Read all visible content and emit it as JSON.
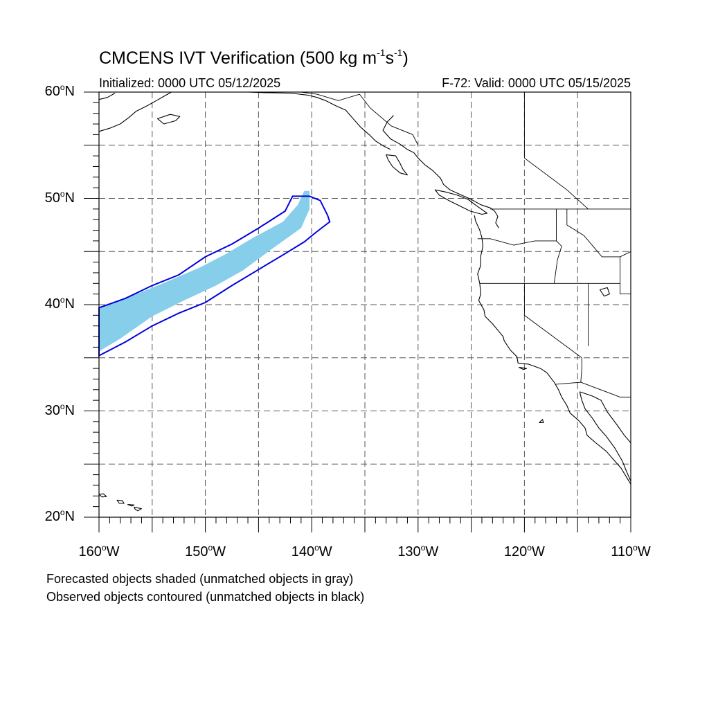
{
  "title": {
    "main": "CMCENS IVT Verification (500 kg m",
    "exp1": "-1",
    "mid": "s",
    "exp2": "-1",
    "end": ")"
  },
  "subtitle": {
    "left": "Initialized: 0000 UTC 05/12/2025",
    "right": "F-72: Valid: 0000 UTC 05/15/2025"
  },
  "map": {
    "projection": "cylindrical-equidistant",
    "lon_range": [
      -160,
      -110
    ],
    "lat_range": [
      20,
      60
    ],
    "grid": "dashed every 5 degrees",
    "lat_labels": [
      {
        "value": 60,
        "num": "60",
        "hem": "N"
      },
      {
        "value": 50,
        "num": "50",
        "hem": "N"
      },
      {
        "value": 40,
        "num": "40",
        "hem": "N"
      },
      {
        "value": 30,
        "num": "30",
        "hem": "N"
      },
      {
        "value": 20,
        "num": "20",
        "hem": "N"
      }
    ],
    "lon_labels": [
      {
        "value": -160,
        "num": "160",
        "hem": "W"
      },
      {
        "value": -150,
        "num": "150",
        "hem": "W"
      },
      {
        "value": -140,
        "num": "140",
        "hem": "W"
      },
      {
        "value": -130,
        "num": "130",
        "hem": "W"
      },
      {
        "value": -120,
        "num": "120",
        "hem": "W"
      },
      {
        "value": -110,
        "num": "110",
        "hem": "W"
      }
    ],
    "forecast_object": {
      "fill_color": "#87ceeb",
      "outline_lonlat": [
        [
          -160,
          39.8
        ],
        [
          -157,
          40.8
        ],
        [
          -154,
          42.0
        ],
        [
          -150.5,
          43.5
        ],
        [
          -148,
          44.8
        ],
        [
          -145.5,
          46.3
        ],
        [
          -142.7,
          47.8
        ],
        [
          -141.3,
          49.4
        ],
        [
          -140.7,
          50.7
        ],
        [
          -140.2,
          50.7
        ],
        [
          -140.2,
          49.0
        ],
        [
          -141.0,
          47.2
        ],
        [
          -143.8,
          45.2
        ],
        [
          -146.5,
          43.2
        ],
        [
          -149,
          41.8
        ],
        [
          -152,
          40.4
        ],
        [
          -155,
          38.9
        ],
        [
          -158,
          36.8
        ],
        [
          -160,
          35.6
        ]
      ]
    },
    "observed_object": {
      "contour_color": "#0000dd",
      "outline_lonlat": [
        [
          -160,
          39.7
        ],
        [
          -157.5,
          40.6
        ],
        [
          -155,
          41.8
        ],
        [
          -152.5,
          42.8
        ],
        [
          -150,
          44.5
        ],
        [
          -147.5,
          45.7
        ],
        [
          -145,
          47.2
        ],
        [
          -142.5,
          48.8
        ],
        [
          -141.8,
          50.2
        ],
        [
          -140.2,
          50.2
        ],
        [
          -139.2,
          49.8
        ],
        [
          -138.5,
          48.4
        ],
        [
          -138.3,
          47.8
        ],
        [
          -139.6,
          46.8
        ],
        [
          -140.7,
          45.9
        ],
        [
          -142.5,
          44.8
        ],
        [
          -145,
          43.3
        ],
        [
          -147.5,
          41.8
        ],
        [
          -150,
          40.2
        ],
        [
          -152.5,
          39.2
        ],
        [
          -155,
          38.0
        ],
        [
          -157.5,
          36.5
        ],
        [
          -160,
          35.2
        ]
      ]
    },
    "coast_color": "#000000",
    "state_line_color": "#000000"
  },
  "footnotes": [
    "Forecasted objects shaded (unmatched objects in gray)",
    "Observed objects contoured (unmatched objects in black)"
  ]
}
